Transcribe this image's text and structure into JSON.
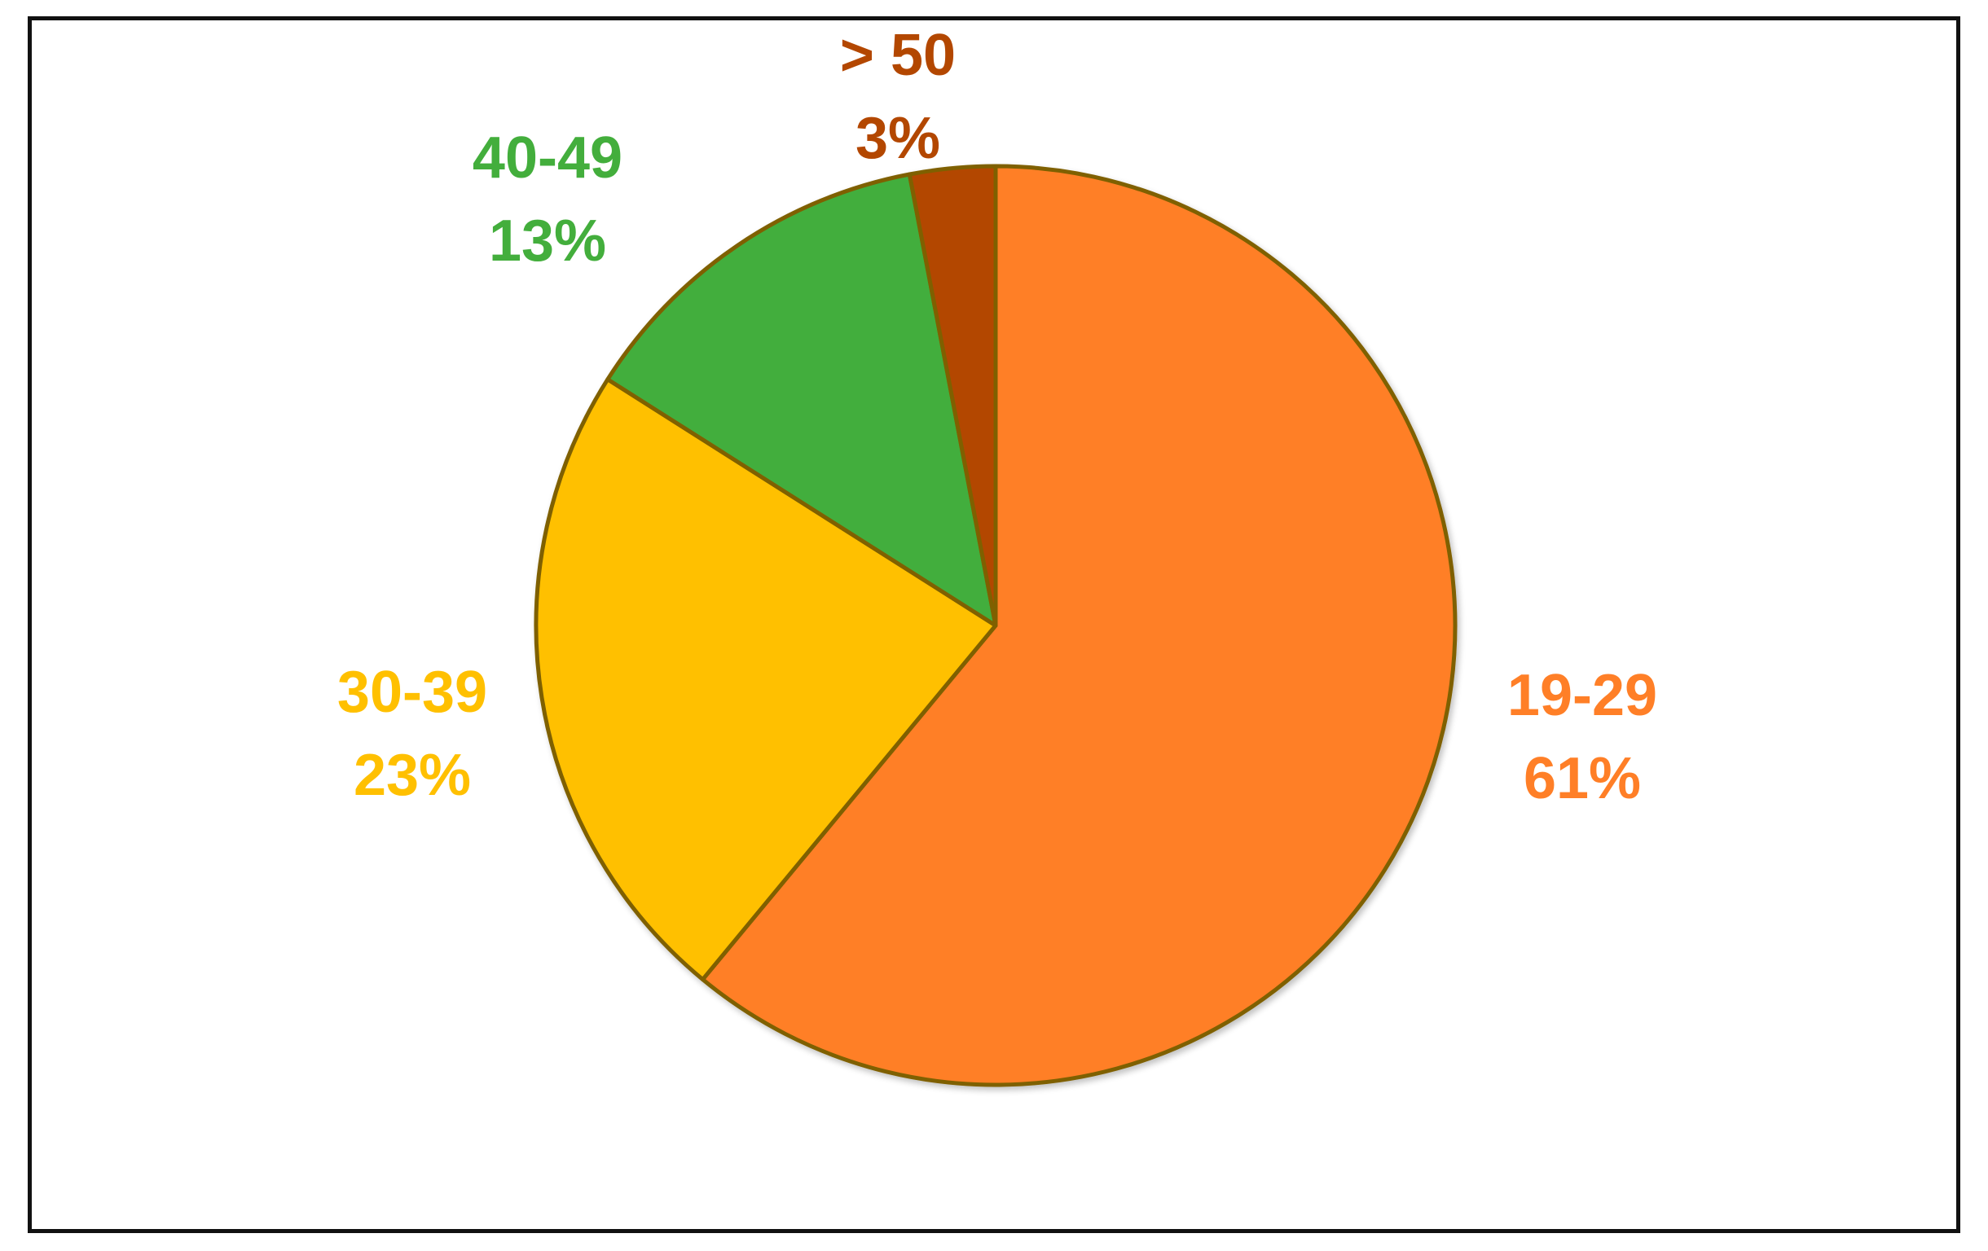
{
  "chart_data": {
    "type": "pie",
    "slices": [
      {
        "label": "19-29",
        "value": 61,
        "value_label": "61%",
        "color": "#FF7F27"
      },
      {
        "label": "30-39",
        "value": 23,
        "value_label": "23%",
        "color": "#FFC000"
      },
      {
        "label": "40-49",
        "value": 13,
        "value_label": "13%",
        "color": "#43AE3C"
      },
      {
        "label": "> 50",
        "value": 3,
        "value_label": "3%",
        "color": "#B34700"
      }
    ],
    "start_angle_deg": 0,
    "direction": "clockwise",
    "slice_border_color": "#7F6000",
    "legend": "none",
    "data_labels": "outside"
  }
}
